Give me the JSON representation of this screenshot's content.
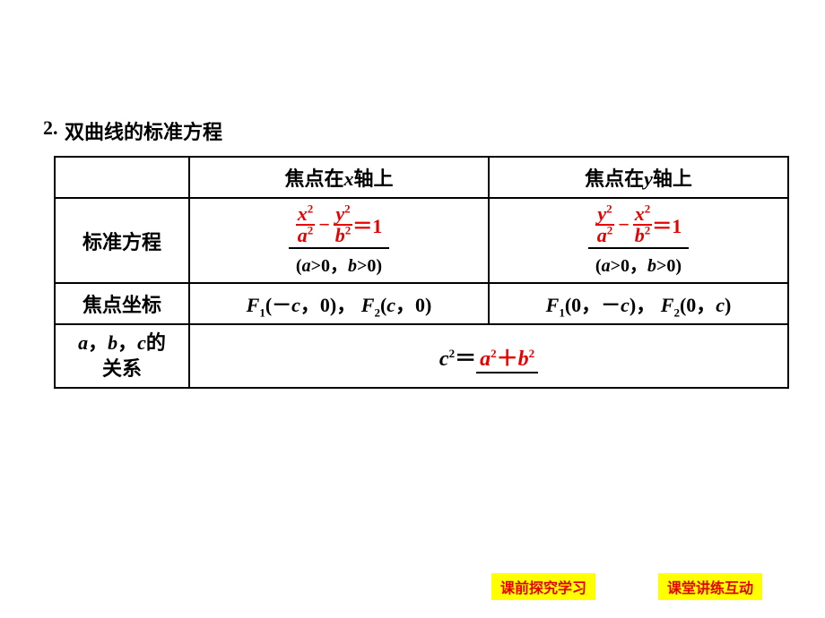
{
  "section": {
    "number": "2.",
    "title": "双曲线的标准方程"
  },
  "table": {
    "col_headers": {
      "x_axis_prefix": "焦点在",
      "x_axis_var": "x",
      "x_axis_suffix": "轴上",
      "y_axis_prefix": "焦点在",
      "y_axis_var": "y",
      "y_axis_suffix": "轴上"
    },
    "row1": {
      "label": "标准方程",
      "x_formula": {
        "term1_num_var": "x",
        "term1_num_exp": "2",
        "term1_den_var": "a",
        "term1_den_exp": "2",
        "op": "−",
        "term2_num_var": "y",
        "term2_num_exp": "2",
        "term2_den_var": "b",
        "term2_den_exp": "2",
        "eq": "＝1"
      },
      "y_formula": {
        "term1_num_var": "y",
        "term1_num_exp": "2",
        "term1_den_var": "a",
        "term1_den_exp": "2",
        "op": "−",
        "term2_num_var": "x",
        "term2_num_exp": "2",
        "term2_den_var": "b",
        "term2_den_exp": "2",
        "eq": "＝1"
      },
      "condition_open": "(",
      "condition_a": "a",
      "condition_gt1": ">0，",
      "condition_b": "b",
      "condition_gt2": ">0)",
      "condition_full_x": "(a>0，b>0)",
      "condition_full_y": "(a>0，b>0)"
    },
    "row2": {
      "label": "焦点坐标",
      "x_focus_f1": "F",
      "x_focus_f1_sub": "1",
      "x_focus_f1_coords": "(－c，0)，",
      "x_focus_f2": "F",
      "x_focus_f2_sub": "2",
      "x_focus_f2_coords": "(c，0)",
      "y_focus_f1": "F",
      "y_focus_f1_sub": "1",
      "y_focus_f1_coords": "(0，－c)，",
      "y_focus_f2": "F",
      "y_focus_f2_sub": "2",
      "y_focus_f2_coords": "(0，c)"
    },
    "row3": {
      "label_a": "a",
      "label_sep1": "，",
      "label_b": "b",
      "label_sep2": "，",
      "label_c": "c",
      "label_suffix": "的",
      "label_line2": "关系",
      "c_var": "c",
      "c_exp": "2",
      "eq_sign": "＝",
      "a_var": "a",
      "a_exp": "2",
      "plus": "＋",
      "b_var": "b",
      "b_exp": "2"
    }
  },
  "footer": {
    "btn1": "课前探究学习",
    "btn2": "课堂讲练互动"
  },
  "colors": {
    "red": "#e60000",
    "yellow": "#ffff00",
    "black": "#000000",
    "white": "#ffffff"
  }
}
